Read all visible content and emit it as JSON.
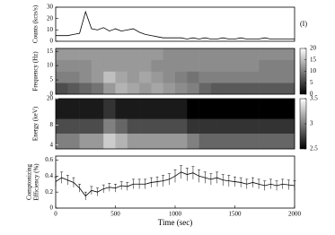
{
  "chart_data": [
    {
      "type": "line",
      "ylabel": "Counts (kcts/s)",
      "annotation": "(I)",
      "color": "#000000",
      "xlim": [
        0,
        2000
      ],
      "ylim": [
        0,
        30
      ],
      "yticks": [
        0,
        10,
        20,
        30
      ],
      "x": [
        0,
        50,
        100,
        150,
        200,
        250,
        300,
        350,
        400,
        450,
        500,
        550,
        600,
        650,
        700,
        750,
        800,
        850,
        900,
        950,
        1000,
        1050,
        1100,
        1150,
        1200,
        1250,
        1300,
        1350,
        1400,
        1450,
        1500,
        1550,
        1600,
        1650,
        1700,
        1750,
        1800,
        1850,
        1900,
        1950,
        2000
      ],
      "values": [
        5,
        5,
        5,
        6,
        7,
        26,
        11,
        10,
        12,
        9,
        11,
        9,
        10,
        11,
        8,
        6,
        5,
        4,
        3,
        3,
        3,
        3,
        2,
        3,
        2,
        3,
        2,
        2,
        3,
        2,
        2,
        3,
        2,
        2,
        2,
        3,
        2,
        2,
        2,
        2,
        2
      ]
    },
    {
      "type": "heatmap",
      "ylabel": "Frequency (Hz)",
      "xlim": [
        0,
        2000
      ],
      "ylim": [
        0,
        16
      ],
      "yticks": [
        0,
        5,
        10,
        15
      ],
      "xbins": [
        0,
        100,
        200,
        300,
        400,
        500,
        600,
        700,
        800,
        900,
        1000,
        1100,
        1200,
        1300,
        1400,
        1500,
        1600,
        1700,
        1800,
        1900,
        2000
      ],
      "ybins": [
        0,
        4,
        8,
        12,
        16
      ],
      "z": [
        [
          6,
          7,
          8,
          9,
          12,
          14,
          13,
          12,
          13,
          12,
          11,
          10,
          8,
          7,
          7,
          7,
          7,
          7,
          7,
          7
        ],
        [
          10,
          10,
          11,
          12,
          15,
          13,
          12,
          13,
          12,
          11,
          10,
          9,
          10,
          10,
          10,
          10,
          10,
          10,
          10,
          10
        ],
        [
          11,
          11,
          11,
          12,
          12,
          12,
          12,
          12,
          11,
          11,
          11,
          11,
          11,
          11,
          11,
          11,
          11,
          10,
          10,
          10
        ],
        [
          12,
          12,
          12,
          12,
          12,
          12,
          12,
          12,
          12,
          11,
          11,
          11,
          11,
          11,
          11,
          11,
          11,
          11,
          11,
          11
        ]
      ],
      "clim": [
        0,
        20
      ],
      "cticks": [
        0,
        5,
        10,
        15,
        20
      ]
    },
    {
      "type": "heatmap",
      "ylabel": "Energy (keV)",
      "log": true,
      "xlim": [
        0,
        2000
      ],
      "ylim": [
        3.5,
        20
      ],
      "yticks": [
        4,
        8,
        20
      ],
      "xbins": [
        0,
        100,
        200,
        300,
        400,
        500,
        600,
        700,
        800,
        900,
        1000,
        1100,
        1200,
        1300,
        1400,
        1500,
        1600,
        1700,
        1800,
        1900,
        2000
      ],
      "ybins": [
        3.5,
        6,
        10,
        20
      ],
      "z": [
        [
          3.0,
          3.0,
          3.1,
          3.1,
          3.3,
          3.2,
          3.1,
          3.1,
          3.1,
          3.1,
          3.1,
          3.0,
          2.9,
          2.9,
          2.9,
          2.9,
          2.9,
          2.9,
          2.9,
          2.9
        ],
        [
          2.8,
          2.8,
          2.8,
          2.8,
          3.0,
          2.9,
          2.8,
          2.8,
          2.8,
          2.8,
          2.8,
          2.7,
          2.7,
          2.7,
          2.7,
          2.7,
          2.7,
          2.7,
          2.7,
          2.7
        ],
        [
          2.6,
          2.6,
          2.6,
          2.6,
          2.7,
          2.6,
          2.6,
          2.6,
          2.6,
          2.6,
          2.6,
          2.5,
          2.5,
          2.5,
          2.5,
          2.5,
          2.5,
          2.5,
          2.5,
          2.5
        ]
      ],
      "clim": [
        2.5,
        3.5
      ],
      "cticks": [
        2.5,
        3,
        3.5
      ]
    },
    {
      "type": "errorbar",
      "ylabel_lines": [
        "Comptonizing",
        "Efficiency (%)"
      ],
      "xlabel": "Time (sec)",
      "color": "#000000",
      "xlim": [
        0,
        2000
      ],
      "xticks": [
        0,
        500,
        1000,
        1500,
        2000
      ],
      "ylim": [
        0,
        0.65
      ],
      "yticks": [
        0,
        0.2,
        0.4,
        0.6
      ],
      "x": [
        0,
        50,
        100,
        150,
        200,
        250,
        300,
        350,
        400,
        450,
        500,
        550,
        600,
        650,
        700,
        750,
        800,
        850,
        900,
        950,
        1000,
        1050,
        1100,
        1150,
        1200,
        1250,
        1300,
        1350,
        1400,
        1450,
        1500,
        1550,
        1600,
        1650,
        1700,
        1750,
        1800,
        1850,
        1900,
        1950,
        2000
      ],
      "values": [
        0.33,
        0.38,
        0.35,
        0.32,
        0.25,
        0.15,
        0.22,
        0.2,
        0.24,
        0.26,
        0.25,
        0.28,
        0.27,
        0.3,
        0.3,
        0.3,
        0.32,
        0.33,
        0.34,
        0.36,
        0.4,
        0.45,
        0.42,
        0.44,
        0.4,
        0.38,
        0.36,
        0.38,
        0.35,
        0.34,
        0.33,
        0.32,
        0.3,
        0.32,
        0.3,
        0.28,
        0.3,
        0.28,
        0.3,
        0.29,
        0.28
      ],
      "errors": [
        0.06,
        0.07,
        0.06,
        0.06,
        0.05,
        0.05,
        0.05,
        0.05,
        0.05,
        0.05,
        0.05,
        0.05,
        0.05,
        0.06,
        0.06,
        0.06,
        0.06,
        0.06,
        0.07,
        0.07,
        0.08,
        0.08,
        0.08,
        0.08,
        0.08,
        0.07,
        0.07,
        0.07,
        0.07,
        0.07,
        0.06,
        0.06,
        0.06,
        0.06,
        0.06,
        0.06,
        0.06,
        0.06,
        0.06,
        0.06,
        0.06
      ]
    }
  ]
}
